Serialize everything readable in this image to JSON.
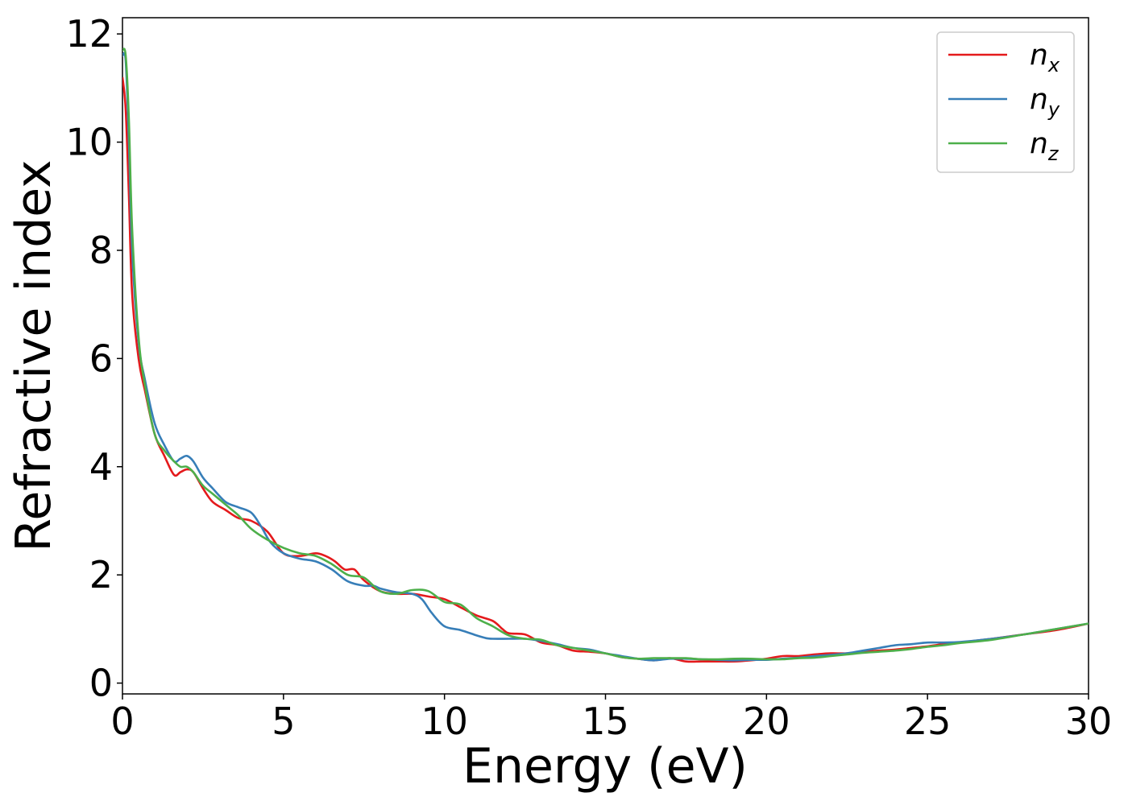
{
  "chart_data": {
    "type": "line",
    "title": "",
    "xlabel": "Energy (eV)",
    "ylabel": "Refractive index",
    "xlim": [
      0,
      30
    ],
    "ylim": [
      -0.2,
      12.3
    ],
    "xticks": [
      0,
      5,
      10,
      15,
      20,
      25,
      30
    ],
    "xtick_labels": [
      "0",
      "5",
      "10",
      "15",
      "20",
      "25",
      "30"
    ],
    "yticks": [
      0,
      2,
      4,
      6,
      8,
      10,
      12
    ],
    "ytick_labels": [
      "0",
      "2",
      "4",
      "6",
      "8",
      "10",
      "12"
    ],
    "grid": false,
    "legend_position": "top-right",
    "series": [
      {
        "name": "n_x",
        "legend_main": "n",
        "legend_sub": "x",
        "color": "#e41a1c",
        "x": [
          0,
          0.1,
          0.2,
          0.3,
          0.5,
          0.7,
          1.0,
          1.3,
          1.6,
          1.8,
          2.0,
          2.2,
          2.5,
          2.8,
          3.2,
          3.6,
          4.0,
          4.5,
          5.0,
          5.5,
          6.0,
          6.3,
          6.6,
          6.9,
          7.2,
          7.5,
          8.0,
          8.5,
          9.0,
          9.5,
          10.0,
          10.5,
          11.0,
          11.5,
          11.8,
          12.0,
          12.5,
          13.0,
          13.5,
          14.0,
          14.5,
          15.0,
          15.5,
          16.0,
          16.5,
          17.0,
          17.5,
          18.0,
          18.5,
          19.0,
          19.5,
          20.0,
          20.5,
          21.0,
          21.5,
          22.0,
          22.5,
          23.0,
          23.5,
          24.0,
          24.5,
          25.0,
          25.5,
          26.0,
          27.0,
          28.0,
          29.0,
          30.0
        ],
        "y": [
          11.2,
          10.6,
          9.0,
          7.2,
          6.0,
          5.4,
          4.6,
          4.2,
          3.85,
          3.9,
          3.95,
          3.9,
          3.6,
          3.35,
          3.2,
          3.05,
          3.0,
          2.8,
          2.4,
          2.35,
          2.4,
          2.35,
          2.25,
          2.1,
          2.1,
          1.9,
          1.7,
          1.65,
          1.65,
          1.6,
          1.55,
          1.4,
          1.25,
          1.15,
          1.0,
          0.92,
          0.9,
          0.75,
          0.7,
          0.6,
          0.58,
          0.55,
          0.48,
          0.45,
          0.42,
          0.46,
          0.4,
          0.4,
          0.4,
          0.4,
          0.42,
          0.45,
          0.5,
          0.5,
          0.53,
          0.55,
          0.55,
          0.58,
          0.6,
          0.62,
          0.65,
          0.68,
          0.72,
          0.75,
          0.82,
          0.9,
          0.98,
          1.1
        ]
      },
      {
        "name": "n_y",
        "legend_main": "n",
        "legend_sub": "y",
        "color": "#377eb8",
        "x": [
          0,
          0.1,
          0.2,
          0.3,
          0.5,
          0.7,
          1.0,
          1.3,
          1.6,
          1.8,
          2.0,
          2.2,
          2.5,
          2.8,
          3.2,
          3.6,
          4.0,
          4.3,
          4.6,
          5.0,
          5.5,
          6.0,
          6.5,
          7.0,
          7.5,
          7.8,
          8.0,
          8.5,
          9.0,
          9.3,
          9.6,
          10.0,
          10.5,
          11.0,
          11.3,
          11.5,
          12.0,
          12.5,
          13.0,
          13.5,
          14.0,
          14.5,
          15.0,
          15.5,
          16.0,
          16.5,
          17.0,
          17.5,
          18.0,
          18.5,
          19.0,
          19.5,
          20.0,
          20.5,
          21.0,
          21.5,
          22.0,
          22.5,
          23.0,
          23.5,
          24.0,
          24.5,
          25.0,
          25.5,
          26.0,
          27.0,
          28.0,
          29.0,
          30.0
        ],
        "y": [
          11.6,
          11.5,
          10.0,
          8.0,
          6.3,
          5.6,
          4.8,
          4.4,
          4.1,
          4.15,
          4.2,
          4.1,
          3.8,
          3.6,
          3.35,
          3.25,
          3.15,
          2.9,
          2.6,
          2.4,
          2.3,
          2.25,
          2.1,
          1.88,
          1.8,
          1.8,
          1.75,
          1.68,
          1.65,
          1.55,
          1.3,
          1.05,
          0.98,
          0.88,
          0.83,
          0.82,
          0.82,
          0.82,
          0.78,
          0.72,
          0.65,
          0.62,
          0.55,
          0.5,
          0.45,
          0.42,
          0.45,
          0.45,
          0.44,
          0.43,
          0.42,
          0.43,
          0.43,
          0.45,
          0.47,
          0.5,
          0.52,
          0.55,
          0.6,
          0.65,
          0.7,
          0.72,
          0.75,
          0.75,
          0.76,
          0.82,
          0.9,
          1.0,
          1.1
        ]
      },
      {
        "name": "n_z",
        "legend_main": "n",
        "legend_sub": "z",
        "color": "#4daf4a",
        "x": [
          0,
          0.1,
          0.2,
          0.3,
          0.5,
          0.7,
          1.0,
          1.3,
          1.6,
          1.8,
          2.0,
          2.2,
          2.5,
          2.8,
          3.2,
          3.6,
          4.0,
          4.5,
          5.0,
          5.5,
          6.0,
          6.5,
          7.0,
          7.5,
          8.0,
          8.5,
          9.0,
          9.5,
          10.0,
          10.5,
          11.0,
          11.5,
          12.0,
          12.5,
          13.0,
          13.5,
          14.0,
          14.5,
          15.0,
          15.5,
          16.0,
          16.5,
          17.0,
          17.5,
          18.0,
          18.5,
          19.0,
          19.5,
          20.0,
          20.5,
          21.0,
          21.5,
          22.0,
          22.5,
          23.0,
          23.5,
          24.0,
          24.5,
          25.0,
          25.5,
          26.0,
          27.0,
          28.0,
          29.0,
          30.0
        ],
        "y": [
          11.7,
          11.6,
          10.4,
          8.4,
          6.4,
          5.5,
          4.6,
          4.3,
          4.1,
          4.0,
          4.0,
          3.9,
          3.65,
          3.5,
          3.3,
          3.1,
          2.85,
          2.65,
          2.5,
          2.4,
          2.35,
          2.2,
          2.0,
          1.95,
          1.7,
          1.65,
          1.72,
          1.7,
          1.5,
          1.45,
          1.2,
          1.05,
          0.88,
          0.82,
          0.8,
          0.7,
          0.65,
          0.6,
          0.55,
          0.48,
          0.45,
          0.46,
          0.46,
          0.46,
          0.44,
          0.44,
          0.45,
          0.45,
          0.44,
          0.44,
          0.46,
          0.47,
          0.5,
          0.53,
          0.56,
          0.58,
          0.6,
          0.63,
          0.67,
          0.7,
          0.74,
          0.8,
          0.9,
          1.0,
          1.1
        ]
      }
    ]
  }
}
